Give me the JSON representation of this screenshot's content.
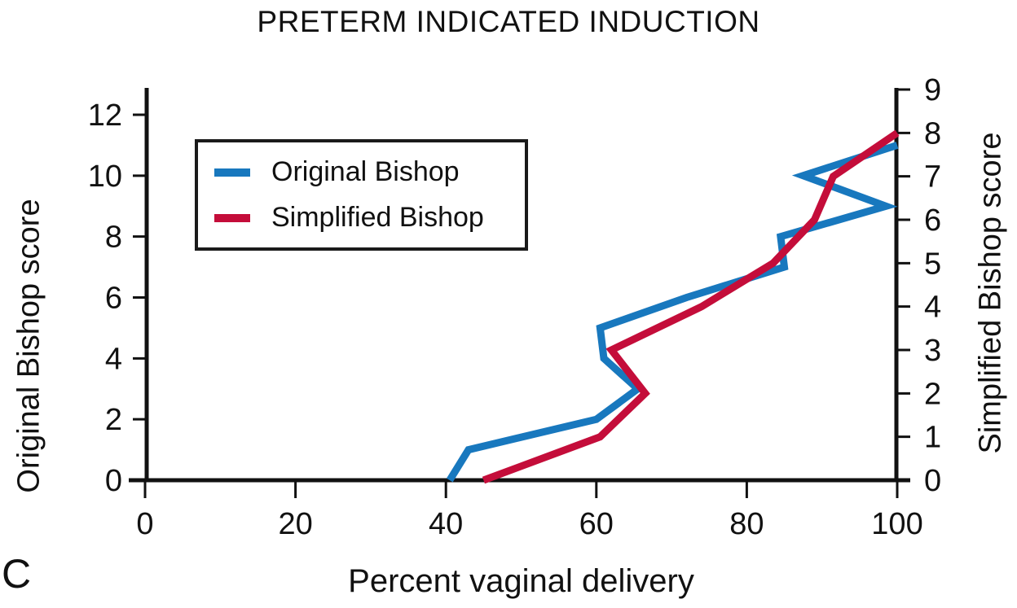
{
  "panel_label": "C",
  "colors": {
    "original_bishop": "#1878BE",
    "simplified_bishop": "#C40D3A",
    "axis": "#111111"
  },
  "chart_data": {
    "type": "line",
    "title": "PRETERM INDICATED INDUCTION",
    "xlabel": "Percent vaginal delivery",
    "ylabel_left": "Original Bishop score",
    "ylabel_right": "Simplified Bishop score",
    "xlim": [
      0,
      100
    ],
    "x_ticks": [
      0,
      20,
      40,
      60,
      80,
      100
    ],
    "left_ylim": [
      0,
      12.9
    ],
    "left_ticks": [
      0,
      2,
      4,
      6,
      8,
      10,
      12
    ],
    "right_ylim": [
      0,
      9
    ],
    "right_ticks": [
      0,
      1,
      2,
      3,
      4,
      5,
      6,
      7,
      8,
      9
    ],
    "grid": false,
    "legend_position": "upper-left",
    "series": [
      {
        "name": "Original Bishop",
        "color": "#1878BE",
        "axis": "left",
        "points_note": "percent vaginal delivery vs Original Bishop score",
        "points": [
          [
            40.5,
            0
          ],
          [
            43,
            1
          ],
          [
            60,
            2
          ],
          [
            65.5,
            3
          ],
          [
            61,
            4
          ],
          [
            60.5,
            5
          ],
          [
            72,
            6
          ],
          [
            85,
            7
          ],
          [
            84.5,
            8
          ],
          [
            98.5,
            9
          ],
          [
            87.5,
            10
          ],
          [
            100,
            11
          ]
        ]
      },
      {
        "name": "Simplified Bishop",
        "color": "#C40D3A",
        "axis": "right",
        "points_note": "percent vaginal delivery vs Simplified Bishop score",
        "points": [
          [
            45,
            0
          ],
          [
            60.5,
            1
          ],
          [
            66.5,
            2
          ],
          [
            62,
            3
          ],
          [
            74,
            4
          ],
          [
            83.5,
            5
          ],
          [
            89,
            6
          ],
          [
            91.5,
            7
          ],
          [
            100,
            8
          ]
        ]
      }
    ]
  }
}
